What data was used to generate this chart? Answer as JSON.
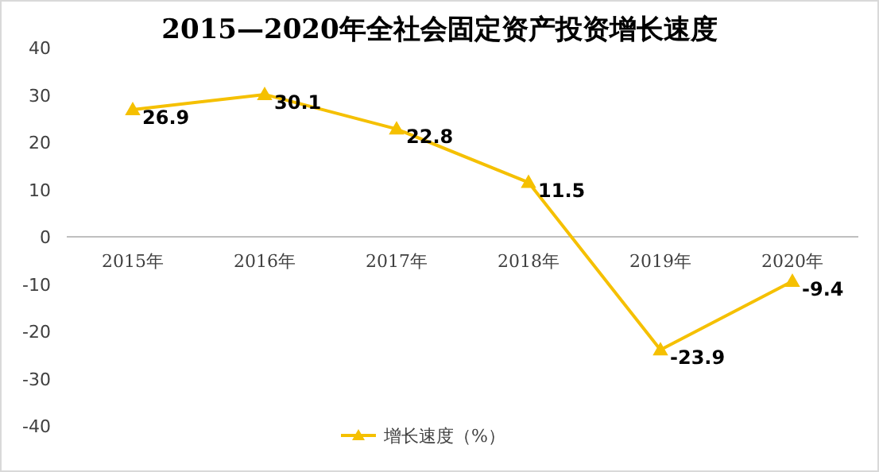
{
  "chart_data": {
    "type": "line",
    "title": "2015—2020年全社会固定资产投资增长速度",
    "categories": [
      "2015年",
      "2016年",
      "2017年",
      "2018年",
      "2019年",
      "2020年"
    ],
    "series": [
      {
        "name": "增长速度（%）",
        "color": "#f5c000",
        "values": [
          26.9,
          30.1,
          22.8,
          11.5,
          -23.9,
          -9.4
        ]
      }
    ],
    "ylim": [
      -40,
      40
    ],
    "yticks": [
      -40,
      -30,
      -20,
      -10,
      0,
      10,
      20,
      30,
      40
    ],
    "data_labels": true,
    "marker": "triangle",
    "line_style": "solid",
    "legend": "bottom",
    "grid": false
  }
}
